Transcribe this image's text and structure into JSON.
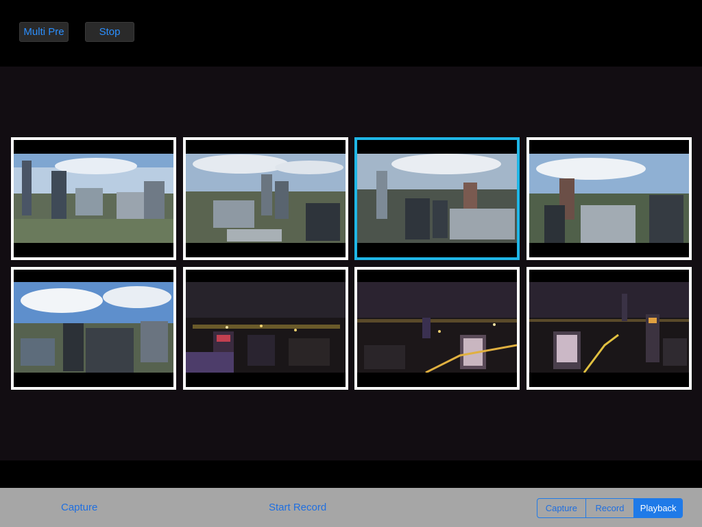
{
  "top_bar": {
    "multi_preview_label": "Multi Pre",
    "stop_label": "Stop"
  },
  "gallery": {
    "items": [
      {
        "kind": "day"
      },
      {
        "kind": "day"
      },
      {
        "kind": "day",
        "selected": true
      },
      {
        "kind": "day"
      },
      {
        "kind": "day"
      },
      {
        "kind": "night"
      },
      {
        "kind": "night"
      },
      {
        "kind": "night"
      }
    ]
  },
  "bottom_bar": {
    "capture_label": "Capture",
    "start_record_label": "Start Record",
    "segments": [
      "Capture",
      "Record",
      "Playback"
    ],
    "active_segment": "Playback"
  },
  "colors": {
    "accent": "#1f7ae8",
    "selected_border": "#1fb6e6",
    "gallery_bg": "#120d12",
    "bottom_bar_bg": "#a6a6a6"
  }
}
